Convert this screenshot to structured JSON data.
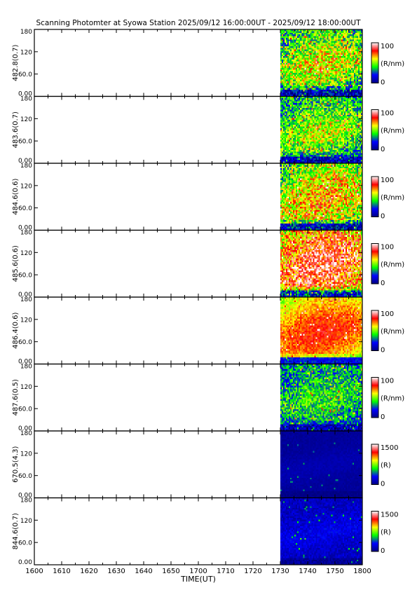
{
  "chart_data": {
    "type": "heatmap",
    "title": "Scanning Photomter at Syowa Station  2025/09/12 16:00:00UT - 2025/09/12 18:00:00UT",
    "xlabel": "TIME(UT)",
    "x_ticks": [
      "1600",
      "1610",
      "1620",
      "1630",
      "1640",
      "1650",
      "1700",
      "1710",
      "1720",
      "1730",
      "1740",
      "1750",
      "1800"
    ],
    "x_range": [
      "16:00",
      "18:00"
    ],
    "data_start": "17:30",
    "y_ticks": [
      "0.00",
      "60.0",
      "120",
      "180"
    ],
    "y_range": [
      0,
      180
    ],
    "colorscale": [
      "#000080",
      "#0000ff",
      "#00ff00",
      "#ffff00",
      "#ff0000",
      "#ffffff"
    ],
    "panels": [
      {
        "ylabel": "482.8(0.7)",
        "unit": "(R/nm)",
        "cmin": "0",
        "cmax": "100",
        "bg": [
          0,
          0.18,
          0.55,
          1
        ],
        "mean": 0.26,
        "band": [
          0.45,
          0.3
        ],
        "green": 0.18,
        "noise": 0.2
      },
      {
        "ylabel": "483.6(0.7)",
        "unit": "(R/nm)",
        "cmin": "0",
        "cmax": "100",
        "bg": [
          0,
          0.18,
          0.55,
          1
        ],
        "mean": 0.24,
        "band": [
          0.45,
          0.3
        ],
        "green": 0.15,
        "noise": 0.18
      },
      {
        "ylabel": "484.6(0.6)",
        "unit": "(R/nm)",
        "cmin": "0",
        "cmax": "100",
        "bg": [
          0,
          0.18,
          0.55,
          1
        ],
        "mean": 0.28,
        "band": [
          0.55,
          0.4
        ],
        "green": 0.2,
        "noise": 0.2
      },
      {
        "ylabel": "485.6(0.6)",
        "unit": "(R/nm)",
        "cmin": "0",
        "cmax": "100",
        "bg": [
          0,
          0.18,
          0.55,
          1
        ],
        "mean": 0.38,
        "band": [
          0.7,
          0.5
        ],
        "green": 0.25,
        "noise": 0.22
      },
      {
        "ylabel": "486.4(0.6)",
        "unit": "(R/nm)",
        "cmin": "0",
        "cmax": "100",
        "bg": [
          0,
          0.18,
          0.55,
          1
        ],
        "mean": 0.42,
        "band": [
          0.65,
          0.45
        ],
        "green": 0.15,
        "noise": 0.08
      },
      {
        "ylabel": "487.6(0.5)",
        "unit": "(R/nm)",
        "cmin": "0",
        "cmax": "100",
        "bg": [
          0,
          0.18,
          0.55,
          1
        ],
        "mean": 0.22,
        "band": [
          0.3,
          0.3
        ],
        "green": 0.1,
        "noise": 0.15
      },
      {
        "ylabel": "670.5(4.3)",
        "unit": "(R)",
        "cmin": "0",
        "cmax": "1500",
        "bg": [
          0,
          0.18,
          0.55,
          1
        ],
        "mean": 0.04,
        "band": [
          0.1,
          0.2
        ],
        "green": 0,
        "noise": 0.02
      },
      {
        "ylabel": "844.6(0.7)",
        "unit": "(R)",
        "cmin": "0",
        "cmax": "1500",
        "bg": [
          0,
          0.18,
          0.55,
          1
        ],
        "mean": 0.1,
        "band": [
          0.2,
          0.2
        ],
        "green": 0,
        "noise": 0.06
      }
    ]
  }
}
